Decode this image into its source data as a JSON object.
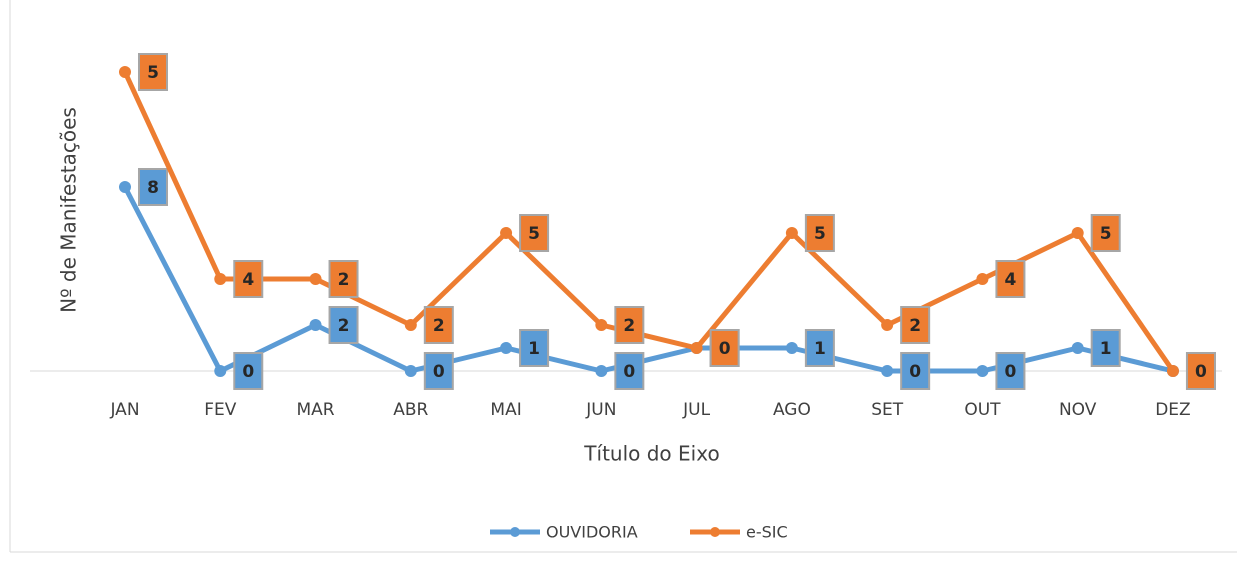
{
  "chart_data": {
    "type": "line",
    "stacked": true,
    "ylabel": "Nº de Manifestações",
    "xlabel": "Título do Eixo",
    "categories": [
      "JAN",
      "FEV",
      "MAR",
      "ABR",
      "MAI",
      "JUN",
      "JUL",
      "AGO",
      "SET",
      "OUT",
      "NOV",
      "DEZ"
    ],
    "series": [
      {
        "name": "OUVIDORIA",
        "color": "#5b9bd5",
        "values": [
          8,
          0,
          2,
          0,
          1,
          0,
          1,
          1,
          0,
          0,
          1,
          0
        ]
      },
      {
        "name": "e-SIC",
        "color": "#ed7d31",
        "values": [
          5,
          4,
          2,
          2,
          5,
          2,
          0,
          5,
          2,
          4,
          5,
          0
        ]
      }
    ],
    "ylim": [
      0,
      14
    ],
    "legend": "bottom"
  }
}
